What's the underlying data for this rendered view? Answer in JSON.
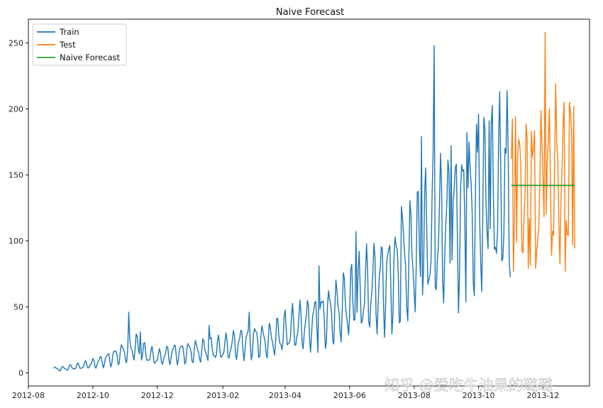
{
  "chart_data": {
    "type": "line",
    "title": "Naive Forecast",
    "xlabel": "",
    "ylabel": "",
    "xlim": [
      "2012-08-01",
      "2014-01-14"
    ],
    "ylim": [
      -10,
      268
    ],
    "grid": false,
    "legend_position": "top-left",
    "x_ticks": [
      "2012-08",
      "2012-10",
      "2012-12",
      "2013-02",
      "2013-04",
      "2013-06",
      "2013-08",
      "2013-10",
      "2013-12"
    ],
    "y_ticks": [
      0,
      50,
      100,
      150,
      200,
      250
    ],
    "series": [
      {
        "name": "Train",
        "color": "#1f77b4",
        "keypoints": [
          [
            "2012-08-25",
            3
          ],
          [
            "2012-09-01",
            3
          ],
          [
            "2012-09-10",
            4
          ],
          [
            "2012-09-20",
            5
          ],
          [
            "2012-10-01",
            7
          ],
          [
            "2012-10-10",
            9
          ],
          [
            "2012-10-20",
            12
          ],
          [
            "2012-11-01",
            16
          ],
          [
            "2012-11-10",
            20
          ],
          [
            "2012-11-20",
            14
          ],
          [
            "2012-12-01",
            11
          ],
          [
            "2012-12-15",
            15
          ],
          [
            "2013-01-01",
            16
          ],
          [
            "2013-01-15",
            17
          ],
          [
            "2013-02-01",
            18
          ],
          [
            "2013-02-15",
            22
          ],
          [
            "2013-03-01",
            25
          ],
          [
            "2013-03-15",
            24
          ],
          [
            "2013-04-01",
            30
          ],
          [
            "2013-04-15",
            35
          ],
          [
            "2013-05-01",
            40
          ],
          [
            "2013-05-15",
            45
          ],
          [
            "2013-06-01",
            52
          ],
          [
            "2013-06-15",
            60
          ],
          [
            "2013-07-01",
            68
          ],
          [
            "2013-07-15",
            76
          ],
          [
            "2013-08-01",
            88
          ],
          [
            "2013-08-15",
            100
          ],
          [
            "2013-09-01",
            110
          ],
          [
            "2013-09-15",
            120
          ],
          [
            "2013-10-01",
            125
          ],
          [
            "2013-10-15",
            130
          ],
          [
            "2013-10-31",
            135
          ]
        ],
        "peaks": [
          [
            "2012-11-04",
            46
          ],
          [
            "2012-11-15",
            31
          ],
          [
            "2013-01-19",
            36
          ],
          [
            "2013-02-26",
            46
          ],
          [
            "2013-05-03",
            81
          ],
          [
            "2013-06-07",
            107
          ],
          [
            "2013-07-20",
            126
          ],
          [
            "2013-08-08",
            179
          ],
          [
            "2013-08-20",
            248
          ],
          [
            "2013-09-05",
            172
          ],
          [
            "2013-09-20",
            182
          ],
          [
            "2013-10-01",
            196
          ],
          [
            "2013-10-11",
            191
          ],
          [
            "2013-10-26",
            170
          ]
        ]
      },
      {
        "name": "Test",
        "color": "#ff7f0e",
        "keypoints": [
          [
            "2013-11-01",
            140
          ],
          [
            "2013-11-15",
            135
          ],
          [
            "2013-12-01",
            140
          ],
          [
            "2013-12-15",
            145
          ],
          [
            "2013-12-31",
            150
          ]
        ],
        "peaks": [
          [
            "2013-11-01",
            162
          ],
          [
            "2013-11-05",
            194
          ],
          [
            "2013-11-20",
            183
          ],
          [
            "2013-12-03",
            258
          ],
          [
            "2013-12-07",
            200
          ],
          [
            "2013-12-13",
            219
          ],
          [
            "2013-12-26",
            205
          ],
          [
            "2013-12-30",
            202
          ]
        ],
        "troughs": [
          [
            "2013-11-03",
            77
          ],
          [
            "2013-11-17",
            79
          ],
          [
            "2013-11-24",
            79
          ],
          [
            "2013-12-09",
            89
          ],
          [
            "2013-12-22",
            77
          ],
          [
            "2013-12-29",
            97
          ]
        ]
      },
      {
        "name": "Naive Forecast",
        "color": "#2ca02c",
        "x": [
          "2013-11-01",
          "2013-12-31"
        ],
        "y": [
          142,
          142
        ]
      }
    ]
  },
  "watermark": {
    "text": "知乎 @爱吃牛油果的璐璐",
    "url": "https://blog.csdn.net/weixin_..."
  }
}
